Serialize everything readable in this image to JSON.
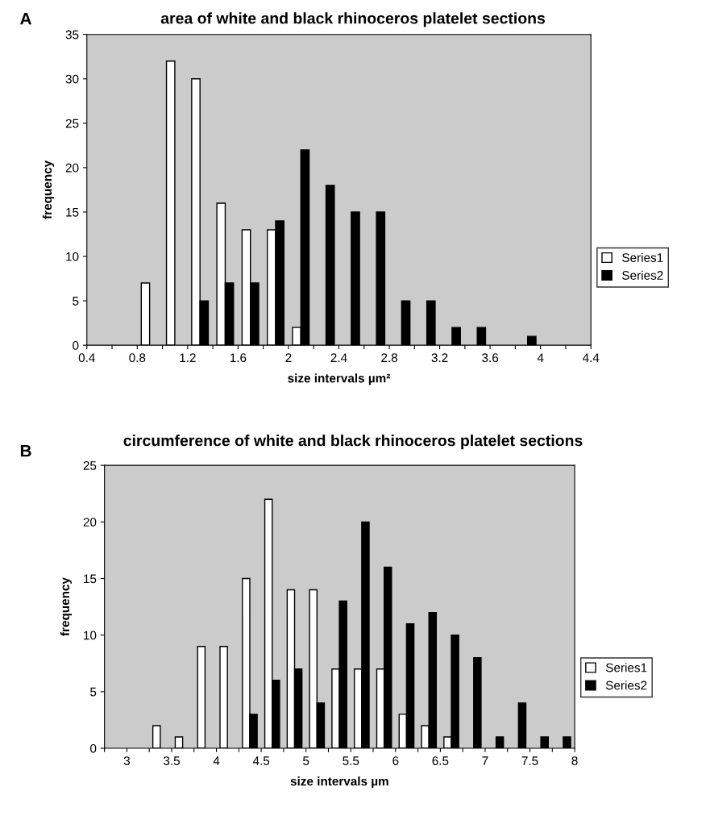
{
  "chart_data": [
    {
      "type": "histogram",
      "title": "area of white and black rhinoceros platelet sections",
      "xlabel": "size intervals µm²",
      "ylabel": "frequency",
      "annotations": [
        "A"
      ],
      "bins": [
        0.4,
        0.6,
        0.8,
        1.0,
        1.2,
        1.4,
        1.6,
        1.8,
        2.0,
        2.2,
        2.4,
        2.6,
        2.8,
        3.0,
        3.2,
        3.4,
        3.6,
        3.8,
        4.0,
        4.2,
        4.4
      ],
      "series": [
        {
          "name": "Series1",
          "color": "#ffffff",
          "values": [
            0,
            0,
            7,
            32,
            30,
            16,
            13,
            13,
            2,
            0,
            0,
            0,
            0,
            0,
            0,
            0,
            0,
            0,
            0,
            0
          ]
        },
        {
          "name": "Series2",
          "color": "#000000",
          "values": [
            0,
            0,
            0,
            0,
            5,
            7,
            7,
            14,
            22,
            18,
            15,
            15,
            5,
            5,
            2,
            2,
            0,
            1,
            0,
            0
          ]
        }
      ],
      "xlim": [
        0.4,
        4.4
      ],
      "xticks": [
        0.4,
        {
          "value": 0.6,
          "label": null
        },
        0.8,
        {
          "value": 1.0,
          "label": null
        },
        1.2,
        {
          "value": 1.4,
          "label": null
        },
        1.6,
        {
          "value": 1.8,
          "label": null
        },
        {
          "value": 2.0,
          "label": "2"
        },
        {
          "value": 2.2,
          "label": null
        },
        2.4,
        {
          "value": 2.6,
          "label": null
        },
        2.8,
        {
          "value": 3.0,
          "label": null
        },
        3.2,
        {
          "value": 3.4,
          "label": null
        },
        3.6,
        {
          "value": 3.8,
          "label": null
        },
        {
          "value": 4.0,
          "label": "4"
        },
        {
          "value": 4.2,
          "label": null
        },
        4.4
      ],
      "ylim": [
        0,
        35
      ],
      "yticks": [
        0,
        5,
        10,
        15,
        20,
        25,
        30,
        35
      ],
      "grid": false,
      "legend": "right"
    },
    {
      "type": "histogram",
      "title": "circumference of white and black rhinoceros platelet sections",
      "xlabel": "size intervals µm",
      "ylabel": "frequency",
      "annotations": [
        "B"
      ],
      "bins": [
        2.75,
        3.0,
        3.25,
        3.5,
        3.75,
        4.0,
        4.25,
        4.5,
        4.75,
        5.0,
        5.25,
        5.5,
        5.75,
        6.0,
        6.25,
        6.5,
        6.75,
        7.0,
        7.25,
        7.5,
        7.75,
        8.0
      ],
      "series": [
        {
          "name": "Series1",
          "color": "#ffffff",
          "values": [
            0,
            0,
            2,
            1,
            9,
            9,
            15,
            22,
            14,
            14,
            7,
            7,
            7,
            3,
            2,
            1,
            0,
            0,
            0,
            0,
            0
          ]
        },
        {
          "name": "Series2",
          "color": "#000000",
          "values": [
            0,
            0,
            0,
            0,
            0,
            0,
            3,
            6,
            7,
            4,
            13,
            20,
            16,
            11,
            12,
            10,
            8,
            1,
            4,
            1,
            1
          ]
        }
      ],
      "xlim": [
        2.75,
        8
      ],
      "xticks": [
        {
          "value": 2.75,
          "label": null
        },
        3,
        {
          "value": 3.25,
          "label": null
        },
        3.5,
        {
          "value": 3.75,
          "label": null
        },
        4,
        {
          "value": 4.25,
          "label": null
        },
        4.5,
        {
          "value": 4.75,
          "label": null
        },
        5,
        {
          "value": 5.25,
          "label": null
        },
        5.5,
        {
          "value": 5.75,
          "label": null
        },
        6,
        {
          "value": 6.25,
          "label": null
        },
        6.5,
        {
          "value": 6.75,
          "label": null
        },
        7,
        {
          "value": 7.25,
          "label": null
        },
        7.5,
        {
          "value": 7.75,
          "label": null
        },
        8
      ],
      "ylim": [
        0,
        25
      ],
      "yticks": [
        0,
        5,
        10,
        15,
        20,
        25
      ],
      "grid": false,
      "legend": "right"
    }
  ]
}
